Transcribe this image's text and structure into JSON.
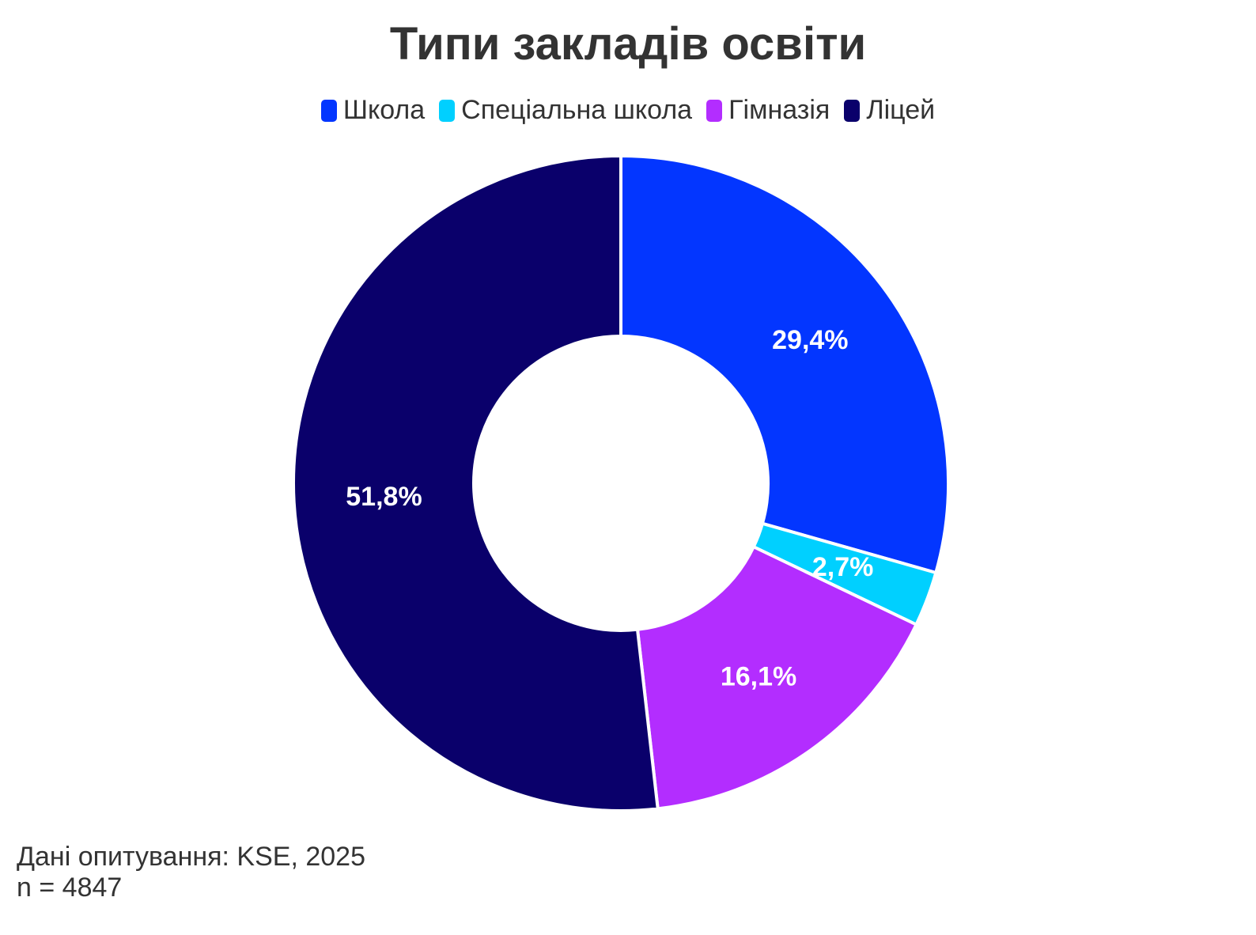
{
  "chart_data": {
    "type": "pie",
    "variant": "donut",
    "title": "Типи закладів освіти",
    "legend_position": "top",
    "slices": [
      {
        "label": "Школа",
        "value": 29.4,
        "display": "29,4%",
        "color": "#0336FF"
      },
      {
        "label": "Спеціальна школа",
        "value": 2.7,
        "display": "2,7%",
        "color": "#00D0FF"
      },
      {
        "label": "Гімназія",
        "value": 16.1,
        "display": "16,1%",
        "color": "#B32DFF"
      },
      {
        "label": "Ліцей",
        "value": 51.8,
        "display": "51,8%",
        "color": "#0A006B"
      }
    ]
  },
  "footer": {
    "source": "Дані опитування: KSE, 2025",
    "sample": "n = 4847"
  }
}
